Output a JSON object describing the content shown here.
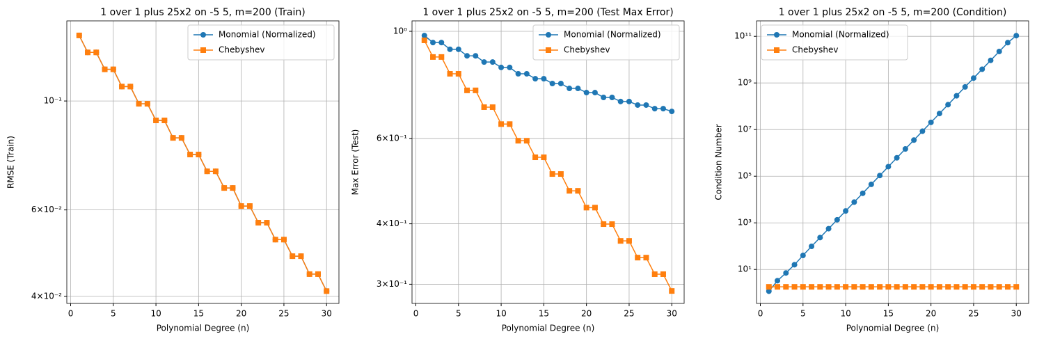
{
  "chart_data": [
    {
      "type": "line",
      "title": "1 over 1 plus 25x2 on -5 5, m=200 (Train)",
      "x_label": "Polynomial Degree (n)",
      "y_label": "RMSE (Train)",
      "x": [
        1,
        2,
        3,
        4,
        5,
        6,
        7,
        8,
        9,
        10,
        11,
        12,
        13,
        14,
        15,
        16,
        17,
        18,
        19,
        20,
        21,
        22,
        23,
        24,
        25,
        26,
        27,
        28,
        29,
        30
      ],
      "series": [
        {
          "name": "Monomial (Normalized)",
          "color": "#1f77b4",
          "marker": "circle",
          "values": [
            0.136,
            0.1256,
            0.1256,
            0.116,
            0.116,
            0.107,
            0.107,
            0.0987,
            0.0987,
            0.0913,
            0.0913,
            0.0841,
            0.0841,
            0.0778,
            0.0778,
            0.0719,
            0.0719,
            0.0665,
            0.0665,
            0.0611,
            0.0611,
            0.0565,
            0.0565,
            0.0522,
            0.0522,
            0.0483,
            0.0483,
            0.0444,
            0.0444,
            0.041
          ]
        },
        {
          "name": "Chebyshev",
          "color": "#ff7f0e",
          "marker": "square",
          "values": [
            0.136,
            0.1256,
            0.1256,
            0.116,
            0.116,
            0.107,
            0.107,
            0.0987,
            0.0987,
            0.0913,
            0.0913,
            0.0841,
            0.0841,
            0.0778,
            0.0778,
            0.0719,
            0.0719,
            0.0665,
            0.0665,
            0.0611,
            0.0611,
            0.0565,
            0.0565,
            0.0522,
            0.0522,
            0.0483,
            0.0483,
            0.0444,
            0.0444,
            0.041
          ]
        }
      ],
      "xlim": [
        -0.45,
        31.45
      ],
      "ylim": [
        0.0387,
        0.1456
      ],
      "xticks": [
        0,
        5,
        10,
        15,
        20,
        25,
        30
      ],
      "yticks": [
        {
          "value": 0.1,
          "label": "10⁻¹"
        },
        {
          "value": 0.06,
          "label": "6×10⁻²"
        },
        {
          "value": 0.04,
          "label": "4×10⁻²"
        }
      ],
      "log_y": true,
      "grid": true,
      "legend": "upper right"
    },
    {
      "type": "line",
      "title": "1 over 1 plus 25x2 on -5 5, m=200 (Test Max Error)",
      "x_label": "Polynomial Degree (n)",
      "y_label": "Max Error (Test)",
      "x": [
        1,
        2,
        3,
        4,
        5,
        6,
        7,
        8,
        9,
        10,
        11,
        12,
        13,
        14,
        15,
        16,
        17,
        18,
        19,
        20,
        21,
        22,
        23,
        24,
        25,
        26,
        27,
        28,
        29,
        30
      ],
      "series": [
        {
          "name": "Monomial (Normalized)",
          "color": "#1f77b4",
          "marker": "circle",
          "values": [
            0.98,
            0.948,
            0.948,
            0.918,
            0.918,
            0.89,
            0.89,
            0.864,
            0.864,
            0.842,
            0.842,
            0.817,
            0.817,
            0.798,
            0.798,
            0.78,
            0.78,
            0.762,
            0.762,
            0.747,
            0.747,
            0.73,
            0.73,
            0.716,
            0.716,
            0.704,
            0.704,
            0.692,
            0.692,
            0.683
          ]
        },
        {
          "name": "Chebyshev",
          "color": "#ff7f0e",
          "marker": "square",
          "values": [
            0.958,
            0.885,
            0.885,
            0.817,
            0.817,
            0.755,
            0.755,
            0.697,
            0.697,
            0.643,
            0.643,
            0.594,
            0.594,
            0.549,
            0.549,
            0.507,
            0.507,
            0.468,
            0.468,
            0.432,
            0.432,
            0.3994,
            0.3994,
            0.3687,
            0.3687,
            0.3405,
            0.3405,
            0.3147,
            0.3147,
            0.2905
          ]
        }
      ],
      "xlim": [
        -0.45,
        31.45
      ],
      "ylim": [
        0.2738,
        1.051
      ],
      "xticks": [
        0,
        5,
        10,
        15,
        20,
        25,
        30
      ],
      "yticks": [
        {
          "value": 1,
          "label": "10⁰"
        },
        {
          "value": 0.6,
          "label": "6×10⁻¹"
        },
        {
          "value": 0.4,
          "label": "4×10⁻¹"
        },
        {
          "value": 0.3,
          "label": "3×10⁻¹"
        }
      ],
      "log_y": true,
      "grid": true,
      "legend": "upper right"
    },
    {
      "type": "line",
      "title": "1 over 1 plus 25x2 on -5 5, m=200 (Condition)",
      "x_label": "Polynomial Degree (n)",
      "y_label": "Condition Number",
      "x": [
        1,
        2,
        3,
        4,
        5,
        6,
        7,
        8,
        9,
        10,
        11,
        12,
        13,
        14,
        15,
        16,
        17,
        18,
        19,
        20,
        21,
        22,
        23,
        24,
        25,
        26,
        27,
        28,
        29,
        30
      ],
      "series": [
        {
          "name": "Monomial (Normalized)",
          "color": "#1f77b4",
          "marker": "circle",
          "values": [
            1.17,
            3.3,
            7.1,
            16,
            40,
            98,
            234,
            562,
            1350,
            3240,
            7760,
            18600,
            44700,
            107000,
            257000,
            617000,
            1480000,
            3550000,
            8510000,
            20400000,
            49000000,
            117000000,
            282000000,
            676000000,
            1620000000,
            3890000000,
            9330000000,
            22400000000,
            53700000000,
            107000000000
          ]
        },
        {
          "name": "Chebyshev",
          "color": "#ff7f0e",
          "marker": "square",
          "values": [
            1.8,
            1.8,
            1.8,
            1.8,
            1.8,
            1.8,
            1.8,
            1.8,
            1.8,
            1.8,
            1.8,
            1.8,
            1.8,
            1.8,
            1.8,
            1.8,
            1.8,
            1.8,
            1.8,
            1.8,
            1.8,
            1.8,
            1.8,
            1.8,
            1.8,
            1.8,
            1.8,
            1.8,
            1.8,
            1.8
          ]
        }
      ],
      "xlim": [
        -0.45,
        31.45
      ],
      "ylim": [
        0.35,
        460000000000
      ],
      "xticks": [
        0,
        5,
        10,
        15,
        20,
        25,
        30
      ],
      "yticks": [
        {
          "value": 10,
          "label": "10¹"
        },
        {
          "value": 1000,
          "label": "10³"
        },
        {
          "value": 100000,
          "label": "10⁵"
        },
        {
          "value": 10000000,
          "label": "10⁷"
        },
        {
          "value": 1000000000,
          "label": "10⁹"
        },
        {
          "value": 100000000000,
          "label": "10¹¹"
        }
      ],
      "log_y": true,
      "grid": true,
      "legend": "upper left"
    }
  ]
}
